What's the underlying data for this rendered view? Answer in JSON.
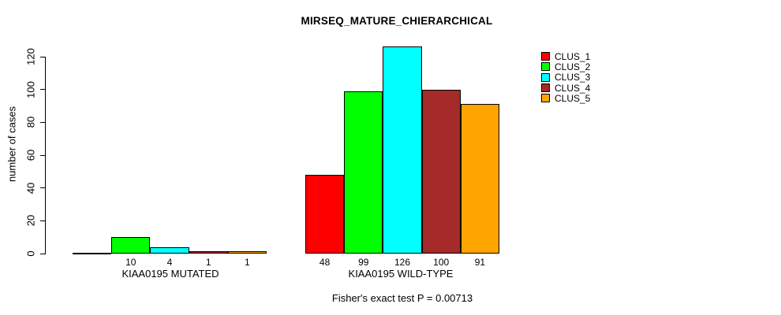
{
  "chart_data": {
    "type": "bar",
    "title": "MIRSEQ_MATURE_CHIERARCHICAL",
    "ylabel": "number of cases",
    "xlabel": "",
    "ylim": [
      0,
      126
    ],
    "yticks": [
      0,
      20,
      40,
      60,
      80,
      100,
      120
    ],
    "grid": false,
    "legend_position": "top-right",
    "series_names": [
      "CLUS_1",
      "CLUS_2",
      "CLUS_3",
      "CLUS_4",
      "CLUS_5"
    ],
    "colors": [
      "#FF0000",
      "#00FF00",
      "#00FFFF",
      "#A52A2A",
      "#FFA500"
    ],
    "groups": [
      {
        "label": "KIAA0195 MUTATED",
        "values": [
          0,
          10,
          4,
          1,
          1
        ],
        "bar_labels": [
          "",
          "10",
          "4",
          "1",
          "1"
        ]
      },
      {
        "label": "KIAA0195 WILD-TYPE",
        "values": [
          48,
          99,
          126,
          100,
          91
        ],
        "bar_labels": [
          "48",
          "99",
          "126",
          "100",
          "91"
        ]
      }
    ],
    "annotation": "Fisher's exact test P = 0.00713"
  }
}
